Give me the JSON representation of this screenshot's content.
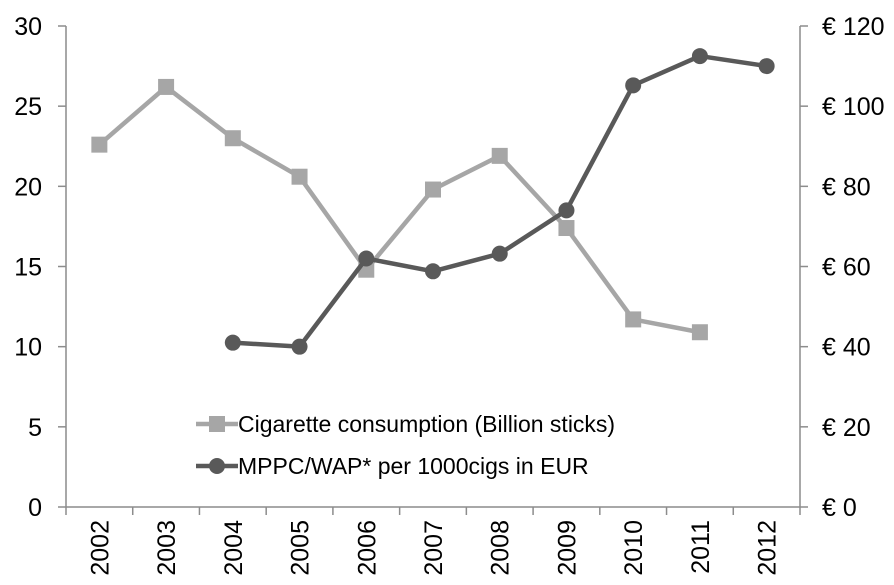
{
  "chart_data": {
    "type": "line",
    "categories": [
      "2002",
      "2003",
      "2004",
      "2005",
      "2006",
      "2007",
      "2008",
      "2009",
      "2010",
      "2011",
      "2012"
    ],
    "series": [
      {
        "name": "Cigarette consumption (Billion sticks)",
        "axis": "left",
        "color": "#a6a6a6",
        "marker": "square",
        "values": [
          22.6,
          26.2,
          23.0,
          20.6,
          14.8,
          19.8,
          21.9,
          17.4,
          11.7,
          10.9,
          null
        ]
      },
      {
        "name": "MPPC/WAP* per 1000cigs in EUR",
        "axis": "right",
        "color": "#595959",
        "marker": "circle",
        "values": [
          null,
          null,
          41,
          40,
          62,
          58.8,
          63.2,
          74,
          105.2,
          112.5,
          110
        ]
      }
    ],
    "y_left": {
      "ylim": [
        0,
        30
      ],
      "ticks": [
        0,
        5,
        10,
        15,
        20,
        25,
        30
      ],
      "tick_labels": [
        "0",
        "5",
        "10",
        "15",
        "20",
        "25",
        "30"
      ]
    },
    "y_right": {
      "ylim": [
        0,
        120
      ],
      "ticks": [
        0,
        20,
        40,
        60,
        80,
        100,
        120
      ],
      "tick_labels": [
        "€ 0",
        "€ 20",
        "€ 40",
        "€ 60",
        "€ 80",
        "€ 100",
        "€ 120"
      ]
    },
    "legend": {
      "placement": "inside-bottom-center",
      "entries": [
        "Cigarette consumption (Billion sticks)",
        "MPPC/WAP* per 1000cigs in EUR"
      ]
    },
    "grid": false,
    "axis_color": "#8c8c8c"
  }
}
